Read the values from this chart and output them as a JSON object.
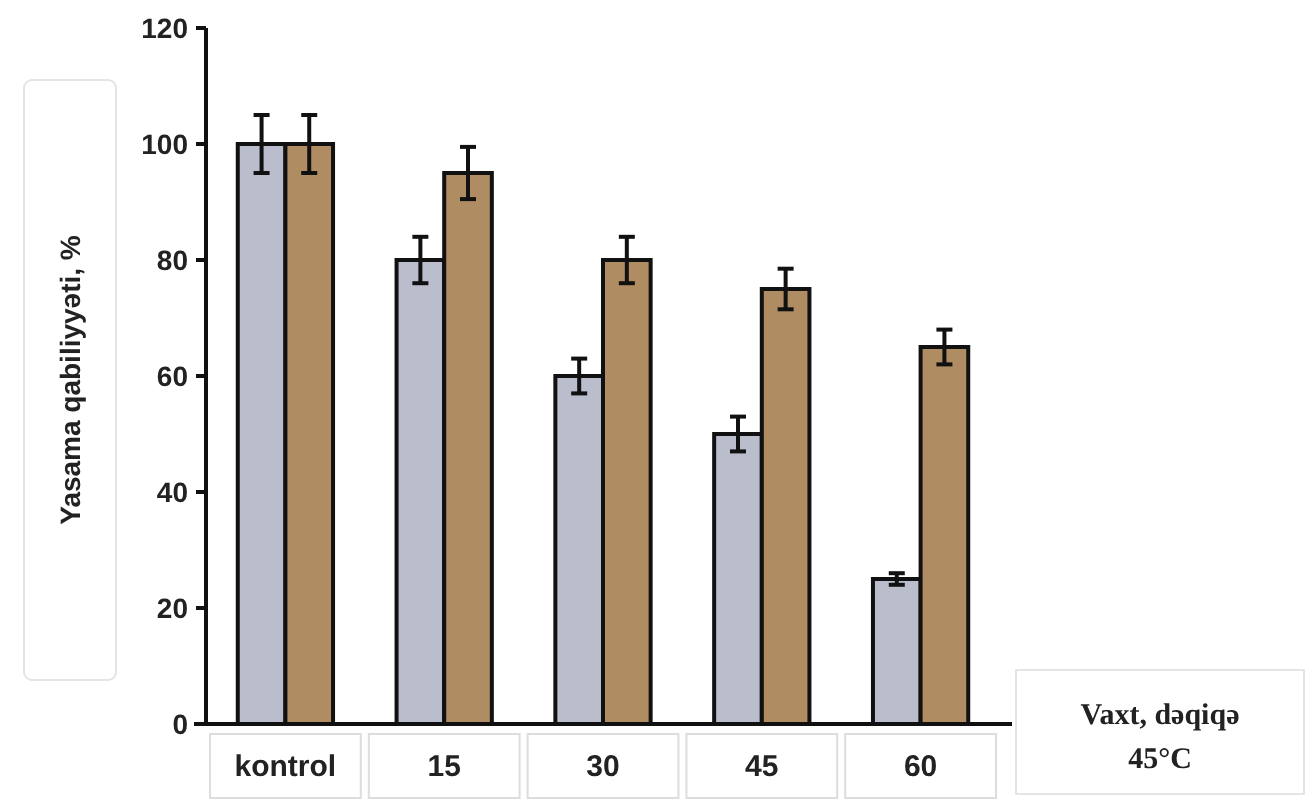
{
  "chart_data": {
    "type": "bar",
    "ylabel": "Yasama qabiliyyəti, %",
    "xlabel": "Vaxt, dəqiqə",
    "annotations": [
      "45°C"
    ],
    "categories": [
      "kontrol",
      "15",
      "30",
      "45",
      "60"
    ],
    "series": [
      {
        "color": "#b9bdcc",
        "values": [
          100,
          80,
          60,
          50,
          25
        ],
        "errors": [
          5,
          4,
          3,
          3,
          1
        ]
      },
      {
        "color": "#b08c62",
        "values": [
          100,
          95,
          80,
          75,
          65
        ],
        "errors": [
          5,
          4.5,
          4,
          3.5,
          3
        ]
      }
    ],
    "ylim": [
      0,
      120
    ],
    "yticks": [
      0,
      20,
      40,
      60,
      80,
      100,
      120
    ],
    "grid": false
  }
}
